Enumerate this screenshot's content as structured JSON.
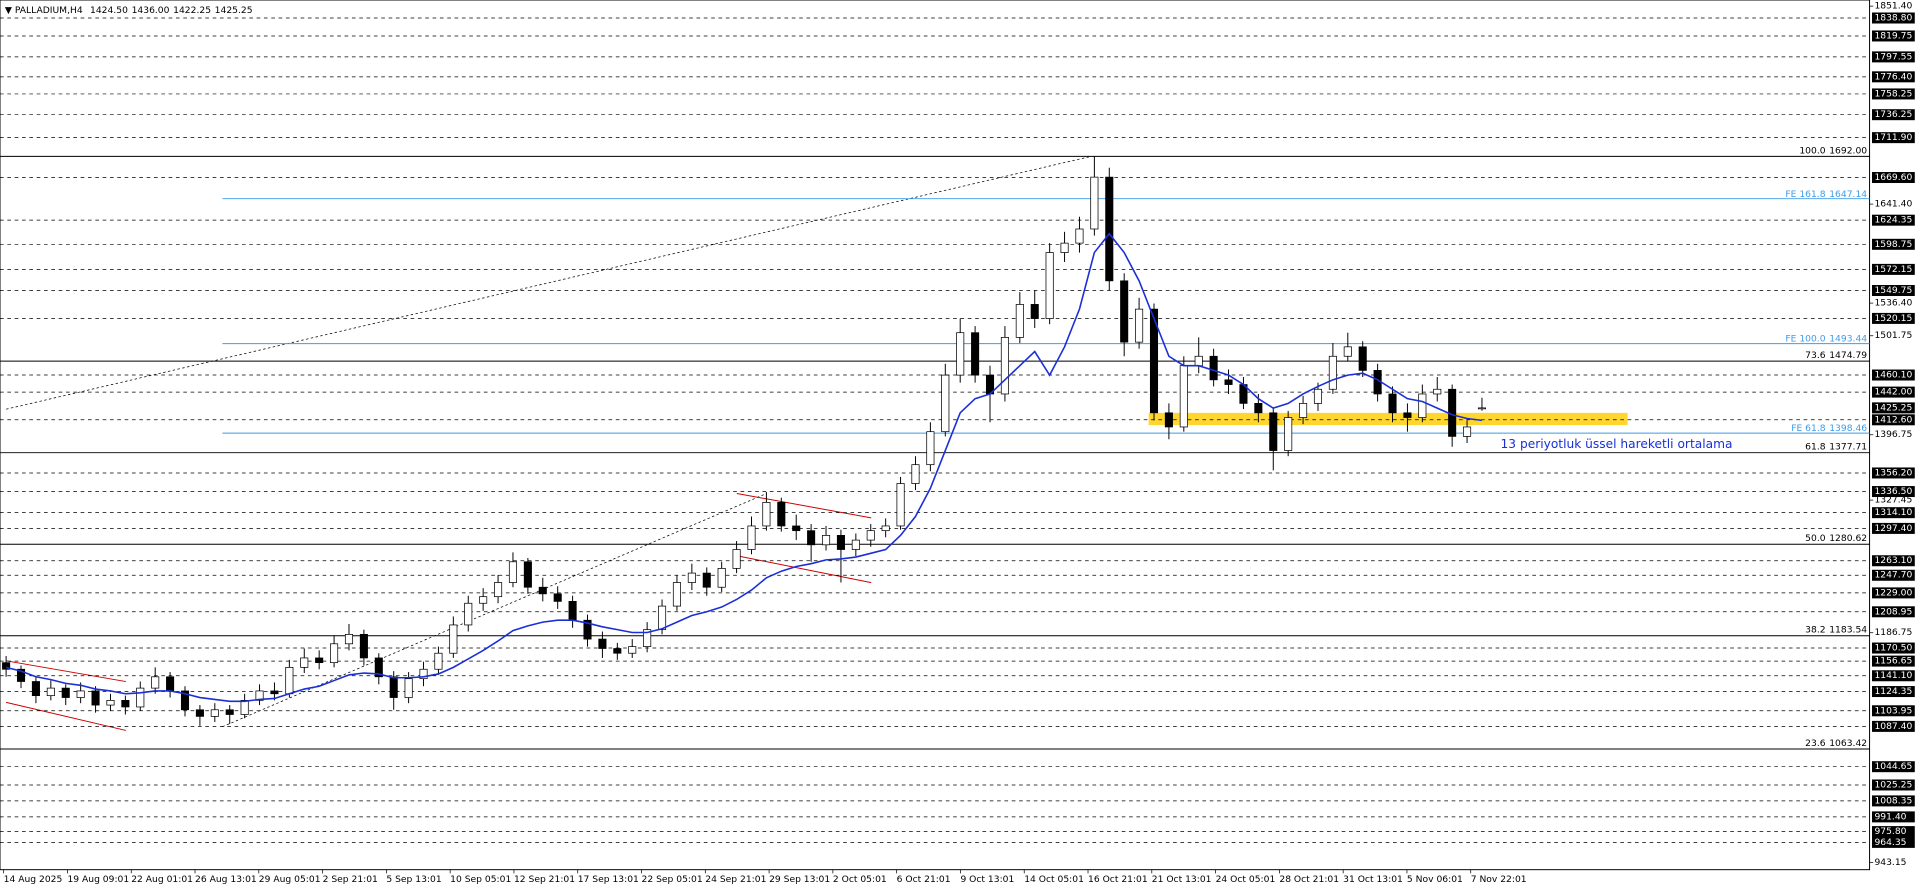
{
  "chart_data": {
    "type": "candlestick",
    "title": "PALLADIUM,H4",
    "last_ohlc_labels": [
      "1424.50",
      "1436.00",
      "1422.25",
      "1425.25"
    ],
    "annotation": "13 periyotluk üssel hareketli ortalama",
    "x_labels": [
      "14 Aug 2025",
      "19 Aug 09:01",
      "22 Aug 01:01",
      "26 Aug 13:01",
      "29 Aug 05:01",
      "2 Sep 21:01",
      "5 Sep 13:01",
      "10 Sep 05:01",
      "12 Sep 21:01",
      "17 Sep 13:01",
      "22 Sep 05:01",
      "24 Sep 21:01",
      "29 Sep 13:01",
      "2 Oct 05:01",
      "6 Oct 21:01",
      "9 Oct 13:01",
      "14 Oct 05:01",
      "16 Oct 21:01",
      "21 Oct 13:01",
      "24 Oct 05:01",
      "28 Oct 21:01",
      "31 Oct 13:01",
      "5 Nov 06:01",
      "7 Nov 22:01"
    ],
    "ohlc": [
      [
        1155,
        1162,
        1140,
        1148
      ],
      [
        1148,
        1152,
        1128,
        1135
      ],
      [
        1135,
        1140,
        1112,
        1120
      ],
      [
        1120,
        1136,
        1115,
        1128
      ],
      [
        1128,
        1132,
        1110,
        1118
      ],
      [
        1118,
        1134,
        1112,
        1125
      ],
      [
        1125,
        1130,
        1102,
        1110
      ],
      [
        1110,
        1122,
        1104,
        1115
      ],
      [
        1115,
        1120,
        1100,
        1108
      ],
      [
        1108,
        1135,
        1104,
        1128
      ],
      [
        1128,
        1150,
        1122,
        1140
      ],
      [
        1140,
        1145,
        1118,
        1125
      ],
      [
        1125,
        1130,
        1098,
        1105
      ],
      [
        1105,
        1110,
        1088,
        1098
      ],
      [
        1098,
        1112,
        1092,
        1105
      ],
      [
        1105,
        1110,
        1090,
        1100
      ],
      [
        1100,
        1122,
        1096,
        1115
      ],
      [
        1115,
        1132,
        1110,
        1125
      ],
      [
        1125,
        1134,
        1115,
        1122
      ],
      [
        1122,
        1158,
        1118,
        1150
      ],
      [
        1150,
        1170,
        1144,
        1160
      ],
      [
        1160,
        1168,
        1148,
        1155
      ],
      [
        1155,
        1184,
        1150,
        1175
      ],
      [
        1175,
        1196,
        1168,
        1185
      ],
      [
        1185,
        1190,
        1152,
        1160
      ],
      [
        1160,
        1165,
        1132,
        1140
      ],
      [
        1140,
        1146,
        1105,
        1118
      ],
      [
        1118,
        1145,
        1112,
        1138
      ],
      [
        1138,
        1156,
        1130,
        1148
      ],
      [
        1148,
        1172,
        1142,
        1165
      ],
      [
        1165,
        1204,
        1160,
        1195
      ],
      [
        1195,
        1226,
        1188,
        1218
      ],
      [
        1218,
        1234,
        1210,
        1225
      ],
      [
        1225,
        1248,
        1218,
        1240
      ],
      [
        1240,
        1272,
        1235,
        1262
      ],
      [
        1262,
        1266,
        1228,
        1235
      ],
      [
        1235,
        1245,
        1220,
        1228
      ],
      [
        1228,
        1236,
        1212,
        1220
      ],
      [
        1220,
        1226,
        1192,
        1200
      ],
      [
        1200,
        1206,
        1172,
        1180
      ],
      [
        1180,
        1188,
        1160,
        1170
      ],
      [
        1170,
        1176,
        1158,
        1165
      ],
      [
        1165,
        1180,
        1160,
        1172
      ],
      [
        1172,
        1198,
        1166,
        1190
      ],
      [
        1190,
        1222,
        1185,
        1215
      ],
      [
        1215,
        1248,
        1210,
        1240
      ],
      [
        1240,
        1260,
        1232,
        1250
      ],
      [
        1250,
        1256,
        1226,
        1235
      ],
      [
        1235,
        1262,
        1230,
        1255
      ],
      [
        1255,
        1284,
        1250,
        1275
      ],
      [
        1275,
        1310,
        1270,
        1300
      ],
      [
        1300,
        1336,
        1295,
        1325
      ],
      [
        1325,
        1330,
        1294,
        1300
      ],
      [
        1300,
        1312,
        1285,
        1295
      ],
      [
        1295,
        1302,
        1262,
        1280
      ],
      [
        1280,
        1300,
        1274,
        1290
      ],
      [
        1290,
        1296,
        1240,
        1275
      ],
      [
        1275,
        1292,
        1268,
        1285
      ],
      [
        1285,
        1302,
        1278,
        1295
      ],
      [
        1295,
        1308,
        1288,
        1300
      ],
      [
        1300,
        1352,
        1296,
        1345
      ],
      [
        1345,
        1374,
        1338,
        1365
      ],
      [
        1365,
        1410,
        1358,
        1400
      ],
      [
        1400,
        1472,
        1395,
        1460
      ],
      [
        1460,
        1520,
        1452,
        1505
      ],
      [
        1505,
        1512,
        1452,
        1460
      ],
      [
        1460,
        1470,
        1410,
        1440
      ],
      [
        1440,
        1512,
        1432,
        1500
      ],
      [
        1500,
        1548,
        1494,
        1535
      ],
      [
        1535,
        1550,
        1510,
        1520
      ],
      [
        1520,
        1600,
        1514,
        1590
      ],
      [
        1590,
        1612,
        1580,
        1600
      ],
      [
        1600,
        1628,
        1590,
        1615
      ],
      [
        1615,
        1692,
        1608,
        1670
      ],
      [
        1670,
        1680,
        1550,
        1560
      ],
      [
        1560,
        1568,
        1480,
        1495
      ],
      [
        1495,
        1542,
        1488,
        1530
      ],
      [
        1530,
        1536,
        1412,
        1420
      ],
      [
        1420,
        1430,
        1392,
        1405
      ],
      [
        1405,
        1480,
        1400,
        1470
      ],
      [
        1470,
        1500,
        1462,
        1480
      ],
      [
        1480,
        1488,
        1448,
        1455
      ],
      [
        1455,
        1466,
        1440,
        1450
      ],
      [
        1450,
        1458,
        1424,
        1430
      ],
      [
        1430,
        1440,
        1410,
        1420
      ],
      [
        1420,
        1426,
        1359,
        1380
      ],
      [
        1380,
        1422,
        1374,
        1415
      ],
      [
        1415,
        1438,
        1408,
        1430
      ],
      [
        1430,
        1452,
        1422,
        1445
      ],
      [
        1445,
        1494,
        1440,
        1480
      ],
      [
        1480,
        1505,
        1475,
        1490
      ],
      [
        1490,
        1496,
        1458,
        1465
      ],
      [
        1465,
        1472,
        1432,
        1440
      ],
      [
        1440,
        1448,
        1410,
        1420
      ],
      [
        1420,
        1430,
        1400,
        1415
      ],
      [
        1415,
        1450,
        1410,
        1440
      ],
      [
        1440,
        1458,
        1432,
        1445
      ],
      [
        1445,
        1450,
        1384,
        1395
      ],
      [
        1395,
        1412,
        1388,
        1405
      ],
      [
        1424.5,
        1436,
        1422.25,
        1425.25
      ]
    ],
    "ema": {
      "color": "#1a2fd6",
      "values": [
        1150,
        1146,
        1140,
        1137,
        1133,
        1131,
        1127,
        1125,
        1122,
        1123,
        1125,
        1125,
        1122,
        1118,
        1116,
        1114,
        1114,
        1116,
        1117,
        1122,
        1127,
        1130,
        1136,
        1142,
        1144,
        1143,
        1139,
        1139,
        1140,
        1143,
        1150,
        1159,
        1168,
        1178,
        1189,
        1194,
        1198,
        1200,
        1200,
        1197,
        1193,
        1190,
        1187,
        1187,
        1191,
        1198,
        1205,
        1209,
        1214,
        1222,
        1232,
        1245,
        1252,
        1257,
        1260,
        1264,
        1265,
        1267,
        1271,
        1275,
        1290,
        1310,
        1340,
        1380,
        1420,
        1435,
        1440,
        1455,
        1470,
        1485,
        1460,
        1490,
        1530,
        1590,
        1610,
        1590,
        1560,
        1520,
        1480,
        1470,
        1470,
        1465,
        1460,
        1450,
        1435,
        1425,
        1430,
        1440,
        1448,
        1455,
        1460,
        1462,
        1455,
        1445,
        1435,
        1432,
        1425,
        1418,
        1414,
        1412
      ]
    },
    "ylim": [
      935.4,
      1857.9
    ],
    "yticks": [
      {
        "value": 1851.4,
        "label": "1851.40"
      },
      {
        "value": 1641.4,
        "label": "1641.40"
      },
      {
        "value": 1536.4,
        "label": "1536.40"
      },
      {
        "value": 1501.75,
        "label": "1501.75"
      },
      {
        "value": 1396.75,
        "label": "1396.75"
      },
      {
        "value": 1327.45,
        "label": "1327.45"
      },
      {
        "value": 1186.75,
        "label": "1186.75"
      },
      {
        "value": 943.15,
        "label": "943.15"
      }
    ],
    "levels": [
      {
        "value": 1838.8,
        "label": "1838.80"
      },
      {
        "value": 1819.75,
        "label": "1819.75"
      },
      {
        "value": 1797.55,
        "label": "1797.55"
      },
      {
        "value": 1776.4,
        "label": "1776.40"
      },
      {
        "value": 1758.25,
        "label": "1758.25"
      },
      {
        "value": 1736.25,
        "label": "1736.25"
      },
      {
        "value": 1711.9,
        "label": "1711.90"
      },
      {
        "value": 1669.6,
        "label": "1669.60"
      },
      {
        "value": 1624.35,
        "label": "1624.35"
      },
      {
        "value": 1598.75,
        "label": "1598.75"
      },
      {
        "value": 1572.15,
        "label": "1572.15"
      },
      {
        "value": 1549.75,
        "label": "1549.75"
      },
      {
        "value": 1520.15,
        "label": "1520.15"
      },
      {
        "value": 1460.1,
        "label": "1460.10"
      },
      {
        "value": 1442,
        "label": "1442.00"
      },
      {
        "value": 1412.6,
        "label": "1412.60"
      },
      {
        "value": 1356.2,
        "label": "1356.20"
      },
      {
        "value": 1336.5,
        "label": "1336.50"
      },
      {
        "value": 1314.1,
        "label": "1314.10"
      },
      {
        "value": 1297.4,
        "label": "1297.40"
      },
      {
        "value": 1263.1,
        "label": "1263.10"
      },
      {
        "value": 1247.7,
        "label": "1247.70"
      },
      {
        "value": 1229,
        "label": "1229.00"
      },
      {
        "value": 1208.95,
        "label": "1208.95"
      },
      {
        "value": 1170.5,
        "label": "1170.50"
      },
      {
        "value": 1156.65,
        "label": "1156.65"
      },
      {
        "value": 1141.1,
        "label": "1141.10"
      },
      {
        "value": 1124.35,
        "label": "1124.35"
      },
      {
        "value": 1103.95,
        "label": "1103.95"
      },
      {
        "value": 1087.4,
        "label": "1087.40"
      },
      {
        "value": 1044.65,
        "label": "1044.65"
      },
      {
        "value": 1025.25,
        "label": "1025.25"
      },
      {
        "value": 1008.35,
        "label": "1008.35"
      },
      {
        "value": 991.4,
        "label": "991.40"
      },
      {
        "value": 975.8,
        "label": "975.80"
      },
      {
        "value": 964.35,
        "label": "964.35"
      }
    ],
    "fib_retracement": [
      {
        "ratio": "100.0",
        "value": 1692,
        "label": "1692.00"
      },
      {
        "ratio": "73.6",
        "value": 1474.79,
        "label": "1474.79"
      },
      {
        "ratio": "61.8",
        "value": 1377.71,
        "label": "1377.71"
      },
      {
        "ratio": "50.0",
        "value": 1280.62,
        "label": "1280.62"
      },
      {
        "ratio": "38.2",
        "value": 1183.54,
        "label": "1183.54"
      },
      {
        "ratio": "23.6",
        "value": 1063.42,
        "label": "1063.42"
      }
    ],
    "fib_expansion": [
      {
        "ratio": "FE 161.8",
        "value": 1647.14,
        "label": "1647.14"
      },
      {
        "ratio": "FE 100.0",
        "value": 1493.44,
        "label": "1493.44"
      },
      {
        "ratio": "FE 61.8",
        "value": 1398.46,
        "label": "1398.46"
      }
    ],
    "colors": {
      "bull": "#ffffff",
      "bear": "#000000",
      "fib": "#000000",
      "fe": "#3d9be9",
      "level": "#000000"
    }
  }
}
